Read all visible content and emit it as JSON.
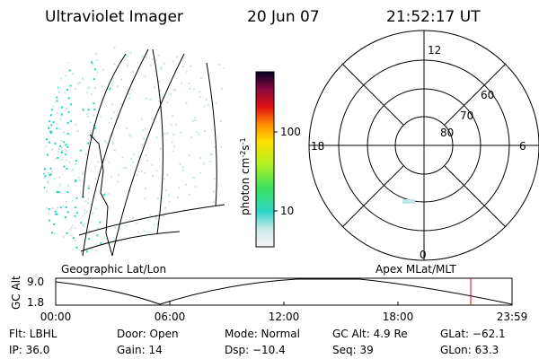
{
  "header": {
    "instrument": "Ultraviolet Imager",
    "date": "20 Jun 07",
    "time": "21:52:17 UT"
  },
  "colorbar": {
    "label": [
      "photon cm",
      "-2",
      "s",
      "-1"
    ],
    "ticks": [
      "100",
      "10"
    ]
  },
  "polar": {
    "mlt_labels": [
      "12",
      "18",
      "6",
      "0"
    ],
    "lat_labels": [
      "60",
      "70",
      "80"
    ]
  },
  "altitude_plot": {
    "left_title": "Geographic Lat/Lon",
    "right_title": "Apex MLat/MLT",
    "axis_label": "GC Alt",
    "yticks": [
      "9.0",
      "1.8"
    ],
    "xticks": [
      "00:00",
      "06:00",
      "12:00",
      "18:00",
      "23:59"
    ]
  },
  "info": [
    [
      "Flt: LBHL",
      "Door: Open",
      "Mode: Normal",
      "GC Alt: 4.9 Re",
      "GLat: −62.1"
    ],
    [
      "IP: 36.0",
      "Gain: 14",
      "Dsp:  −10.4",
      "Seq: 39",
      "GLon:  63.3"
    ]
  ]
}
